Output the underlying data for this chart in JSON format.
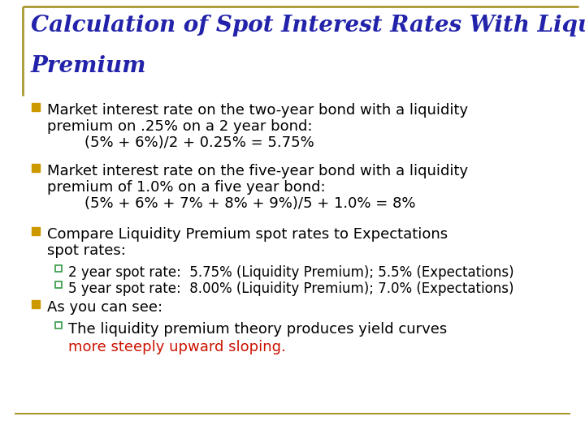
{
  "title_line1": "Calculation of Spot Interest Rates With Liquidity",
  "title_line2": "Premium",
  "title_color": "#2222aa",
  "title_fontsize": 20,
  "background_color": "#ffffff",
  "border_color": "#aa9933",
  "bullet_color": "#cc9900",
  "sub_bullet_color": "#339944",
  "bullet1": {
    "main1": "Market interest rate on the two-year bond with a liquidity",
    "main2": "premium on .25% on a 2 year bond:",
    "sub": "        (5% + 6%)/2 + 0.25% = 5.75%"
  },
  "bullet2": {
    "main1": "Market interest rate on the five-year bond with a liquidity",
    "main2": "premium of 1.0% on a five year bond:",
    "sub": "        (5% + 6% + 7% + 8% + 9%)/5 + 1.0% = 8%"
  },
  "bullet3": {
    "main1": "Compare Liquidity Premium spot rates to Expectations",
    "main2": "spot rates:",
    "sub1": "2 year spot rate:  5.75% (Liquidity Premium); 5.5% (Expectations)",
    "sub2": "5 year spot rate:  8.00% (Liquidity Premium); 7.0% (Expectations)"
  },
  "bullet4": {
    "main": "As you can see:",
    "sub_black": "The liquidity premium theory produces yield curves",
    "sub_red": "more steeply upward sloping."
  },
  "text_color": "#000000",
  "red_color": "#cc1100",
  "main_fontsize": 13.0,
  "sub_fontsize": 12.0
}
